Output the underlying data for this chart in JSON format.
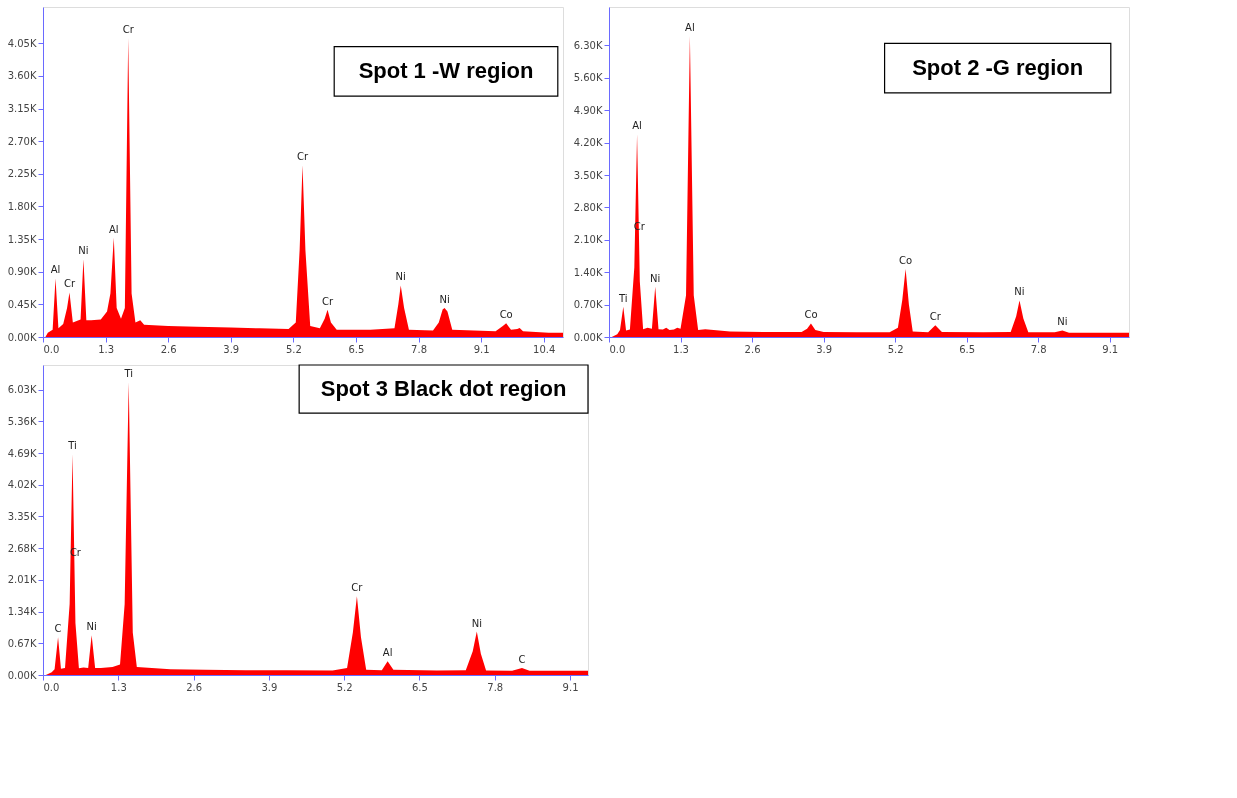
{
  "chart_data": [
    {
      "type": "area",
      "color": "#ff0000",
      "x": [
        0.05,
        0.1,
        0.2,
        0.26,
        0.32,
        0.42,
        0.5,
        0.55,
        0.62,
        0.7,
        0.78,
        0.84,
        0.9,
        1.0,
        1.2,
        1.33,
        1.4,
        1.47,
        1.53,
        1.62,
        1.7,
        1.77,
        1.84,
        1.92,
        2.02,
        2.1,
        2.6,
        3.2,
        3.9,
        4.5,
        5.1,
        5.25,
        5.33,
        5.39,
        5.45,
        5.55,
        5.75,
        5.85,
        5.91,
        5.98,
        6.1,
        6.8,
        7.3,
        7.38,
        7.43,
        7.5,
        7.6,
        8.1,
        8.22,
        8.3,
        8.34,
        8.4,
        8.5,
        9.4,
        9.55,
        9.62,
        9.72,
        9.85,
        9.9,
        9.97,
        10.5,
        10.8
      ],
      "values": [
        0,
        60,
        100,
        807,
        120,
        180,
        400,
        615,
        200,
        220,
        240,
        1071,
        230,
        230,
        240,
        350,
        600,
        1369,
        400,
        250,
        400,
        4122,
        600,
        200,
        230,
        170,
        150,
        140,
        130,
        120,
        110,
        200,
        1200,
        2368,
        1200,
        150,
        120,
        250,
        375,
        200,
        100,
        100,
        120,
        450,
        711,
        400,
        100,
        90,
        200,
        380,
        400,
        350,
        100,
        80,
        150,
        190,
        100,
        110,
        125,
        80,
        60,
        60
      ],
      "xlim": [
        0,
        10.8
      ],
      "ylim": [
        0,
        4550
      ],
      "xticks": [
        {
          "value": 0,
          "label": "0.0"
        },
        {
          "value": 1.3,
          "label": "1.3"
        },
        {
          "value": 2.6,
          "label": "2.6"
        },
        {
          "value": 3.9,
          "label": "3.9"
        },
        {
          "value": 5.2,
          "label": "5.2"
        },
        {
          "value": 6.5,
          "label": "6.5"
        },
        {
          "value": 7.8,
          "label": "7.8"
        },
        {
          "value": 9.1,
          "label": "9.1"
        },
        {
          "value": 10.4,
          "label": "10.4"
        }
      ],
      "yticks": [
        {
          "value": 0,
          "label": "0.00K"
        },
        {
          "value": 450,
          "label": "0.45K"
        },
        {
          "value": 900,
          "label": "0.90K"
        },
        {
          "value": 1350,
          "label": "1.35K"
        },
        {
          "value": 1800,
          "label": "1.80K"
        },
        {
          "value": 2250,
          "label": "2.25K"
        },
        {
          "value": 2700,
          "label": "2.70K"
        },
        {
          "value": 3150,
          "label": "3.15K"
        },
        {
          "value": 3600,
          "label": "3.60K"
        },
        {
          "value": 4050,
          "label": "4.05K"
        }
      ],
      "annotations": [
        "Spot 1 -W region",
        {
          "text": "Al",
          "x": 0.26,
          "y": 807
        },
        {
          "text": "Cr",
          "x": 0.55,
          "y": 615
        },
        {
          "text": "Ni",
          "x": 0.84,
          "y": 1071
        },
        {
          "text": "Al",
          "x": 1.47,
          "y": 1369
        },
        {
          "text": "Cr",
          "x": 1.77,
          "y": 4122
        },
        {
          "text": "Cr",
          "x": 5.39,
          "y": 2368
        },
        {
          "text": "Cr",
          "x": 5.91,
          "y": 375
        },
        {
          "text": "Ni",
          "x": 7.43,
          "y": 711
        },
        {
          "text": "Ni",
          "x": 8.34,
          "y": 400
        },
        {
          "text": "Co",
          "x": 9.62,
          "y": 190
        }
      ]
    },
    {
      "type": "area",
      "color": "#ff0000",
      "x": [
        0.05,
        0.15,
        0.2,
        0.26,
        0.31,
        0.38,
        0.46,
        0.51,
        0.56,
        0.62,
        0.7,
        0.78,
        0.84,
        0.9,
        0.98,
        1.04,
        1.1,
        1.18,
        1.24,
        1.3,
        1.4,
        1.47,
        1.54,
        1.62,
        1.75,
        2.2,
        2.8,
        3.5,
        3.6,
        3.67,
        3.75,
        3.9,
        4.5,
        5.1,
        5.25,
        5.33,
        5.39,
        5.45,
        5.52,
        5.8,
        5.93,
        6.05,
        6.8,
        7.3,
        7.4,
        7.46,
        7.53,
        7.62,
        8.1,
        8.24,
        8.36,
        8.8,
        9.45
      ],
      "values": [
        0,
        60,
        150,
        655,
        140,
        160,
        1500,
        4381,
        1200,
        165,
        200,
        180,
        1084,
        170,
        160,
        200,
        150,
        160,
        200,
        180,
        900,
        6503,
        900,
        150,
        170,
        120,
        110,
        110,
        180,
        294,
        150,
        110,
        105,
        105,
        200,
        800,
        1468,
        700,
        120,
        105,
        256,
        110,
        100,
        110,
        450,
        790,
        400,
        100,
        100,
        143,
        90,
        90,
        90
      ],
      "xlim": [
        0,
        9.45
      ],
      "ylim": [
        0,
        7130
      ],
      "xticks": [
        {
          "value": 0,
          "label": "0.0"
        },
        {
          "value": 1.3,
          "label": "1.3"
        },
        {
          "value": 2.6,
          "label": "2.6"
        },
        {
          "value": 3.9,
          "label": "3.9"
        },
        {
          "value": 5.2,
          "label": "5.2"
        },
        {
          "value": 6.5,
          "label": "6.5"
        },
        {
          "value": 7.8,
          "label": "7.8"
        },
        {
          "value": 9.1,
          "label": "9.1"
        }
      ],
      "yticks": [
        {
          "value": 0,
          "label": "0.00K"
        },
        {
          "value": 700,
          "label": "0.70K"
        },
        {
          "value": 1400,
          "label": "1.40K"
        },
        {
          "value": 2100,
          "label": "2.10K"
        },
        {
          "value": 2800,
          "label": "2.80K"
        },
        {
          "value": 3500,
          "label": "3.50K"
        },
        {
          "value": 4200,
          "label": "4.20K"
        },
        {
          "value": 4900,
          "label": "4.90K"
        },
        {
          "value": 5600,
          "label": "5.60K"
        },
        {
          "value": 6300,
          "label": "6.30K"
        }
      ],
      "annotations": [
        "Spot 2 -G region",
        {
          "text": "Ti",
          "x": 0.26,
          "y": 655
        },
        {
          "text": "Al",
          "x": 0.51,
          "y": 4381
        },
        {
          "text": "Cr",
          "x": 0.55,
          "y": 2200
        },
        {
          "text": "Ni",
          "x": 0.84,
          "y": 1084
        },
        {
          "text": "Al",
          "x": 1.47,
          "y": 6503
        },
        {
          "text": "Co",
          "x": 3.67,
          "y": 294
        },
        {
          "text": "Co",
          "x": 5.39,
          "y": 1468
        },
        {
          "text": "Cr",
          "x": 5.93,
          "y": 256
        },
        {
          "text": "Ni",
          "x": 7.46,
          "y": 790
        },
        {
          "text": "Ni",
          "x": 8.24,
          "y": 143
        }
      ]
    },
    {
      "type": "area",
      "color": "#ff0000",
      "x": [
        0.05,
        0.15,
        0.2,
        0.26,
        0.31,
        0.38,
        0.46,
        0.51,
        0.56,
        0.62,
        0.7,
        0.78,
        0.84,
        0.9,
        1.0,
        1.2,
        1.33,
        1.41,
        1.48,
        1.55,
        1.62,
        1.75,
        2.2,
        2.8,
        3.5,
        4.2,
        5.0,
        5.25,
        5.35,
        5.42,
        5.49,
        5.58,
        5.85,
        5.95,
        6.05,
        6.8,
        7.3,
        7.42,
        7.49,
        7.56,
        7.65,
        8.1,
        8.27,
        8.4,
        8.9,
        9.41
      ],
      "values": [
        0,
        60,
        120,
        800,
        130,
        150,
        1500,
        4665,
        1100,
        140,
        160,
        150,
        839,
        150,
        150,
        170,
        220,
        1500,
        6187,
        900,
        170,
        160,
        120,
        110,
        100,
        100,
        95,
        150,
        900,
        1662,
        800,
        110,
        100,
        290,
        110,
        95,
        100,
        500,
        917,
        450,
        95,
        90,
        149,
        90,
        90,
        90
      ],
      "xlim": [
        0,
        9.41
      ],
      "ylim": [
        0,
        6550
      ],
      "xticks": [
        {
          "value": 0,
          "label": "0.0"
        },
        {
          "value": 1.3,
          "label": "1.3"
        },
        {
          "value": 2.6,
          "label": "2.6"
        },
        {
          "value": 3.9,
          "label": "3.9"
        },
        {
          "value": 5.2,
          "label": "5.2"
        },
        {
          "value": 6.5,
          "label": "6.5"
        },
        {
          "value": 7.8,
          "label": "7.8"
        },
        {
          "value": 9.1,
          "label": "9.1"
        }
      ],
      "yticks": [
        {
          "value": 0,
          "label": "0.00K"
        },
        {
          "value": 670,
          "label": "0.67K"
        },
        {
          "value": 1340,
          "label": "1.34K"
        },
        {
          "value": 2010,
          "label": "2.01K"
        },
        {
          "value": 2680,
          "label": "2.68K"
        },
        {
          "value": 3350,
          "label": "3.35K"
        },
        {
          "value": 4020,
          "label": "4.02K"
        },
        {
          "value": 4690,
          "label": "4.69K"
        },
        {
          "value": 5360,
          "label": "5.36K"
        },
        {
          "value": 6030,
          "label": "6.03K"
        }
      ],
      "annotations": [
        "Spot 3 Black dot region",
        {
          "text": "C",
          "x": 0.26,
          "y": 800
        },
        {
          "text": "Ti",
          "x": 0.51,
          "y": 4665
        },
        {
          "text": "Cr",
          "x": 0.56,
          "y": 2400
        },
        {
          "text": "Ni",
          "x": 0.84,
          "y": 839
        },
        {
          "text": "Ti",
          "x": 1.48,
          "y": 6187
        },
        {
          "text": "Cr",
          "x": 5.42,
          "y": 1662
        },
        {
          "text": "Al",
          "x": 5.95,
          "y": 290
        },
        {
          "text": "Ni",
          "x": 7.49,
          "y": 917
        },
        {
          "text": "C",
          "x": 8.27,
          "y": 149
        }
      ]
    }
  ]
}
